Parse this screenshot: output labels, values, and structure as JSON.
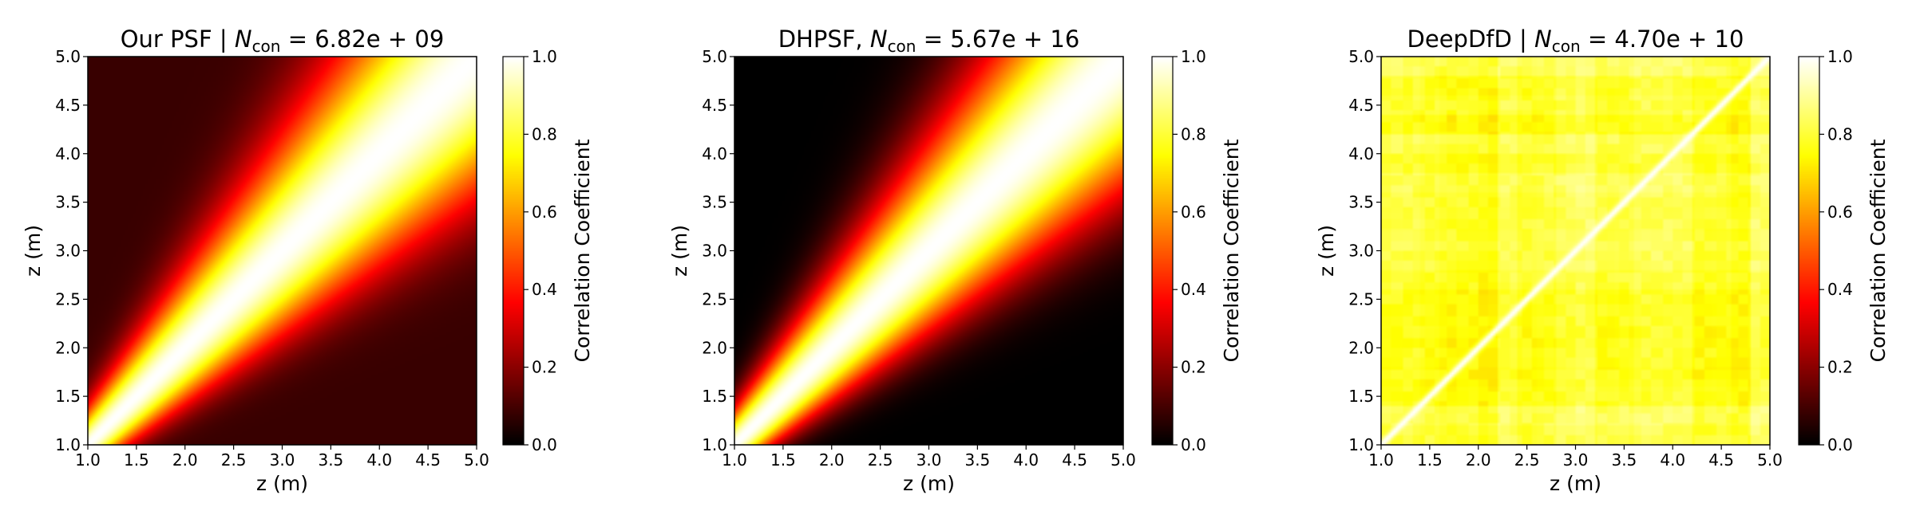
{
  "chart_data": [
    {
      "type": "heatmap",
      "title": "Our PSF | N_con = 6.82e+09",
      "title_parts": {
        "prefix": "Our PSF | ",
        "symbol": "N",
        "subscript": "con",
        "equation": " = 6.82e + 09"
      },
      "xlabel": "z (m)",
      "ylabel": "z (m)",
      "xlim": [
        1.0,
        5.0
      ],
      "ylim": [
        1.0,
        5.0
      ],
      "x_ticks": [
        "1.0",
        "1.5",
        "2.0",
        "2.5",
        "3.0",
        "3.5",
        "4.0",
        "4.5",
        "5.0"
      ],
      "y_ticks": [
        "1.0",
        "1.5",
        "2.0",
        "2.5",
        "3.0",
        "3.5",
        "4.0",
        "4.5",
        "5.0"
      ],
      "colorbar": {
        "label": "Correlation Coefficient",
        "range": [
          0.0,
          1.0
        ],
        "ticks": [
          "0.0",
          "0.2",
          "0.4",
          "0.6",
          "0.8",
          "1.0"
        ],
        "colormap": "hot"
      },
      "correlation_model": {
        "kind": "log_distance_decay",
        "scale": 2.2,
        "floor": 0.08
      },
      "legend": "none",
      "grid": false
    },
    {
      "type": "heatmap",
      "title": "DHPSF, N_con = 5.67e+16",
      "title_parts": {
        "prefix": "DHPSF, ",
        "symbol": "N",
        "subscript": "con",
        "equation": " = 5.67e + 16"
      },
      "xlabel": "z (m)",
      "ylabel": "z (m)",
      "xlim": [
        1.0,
        5.0
      ],
      "ylim": [
        1.0,
        5.0
      ],
      "x_ticks": [
        "1.0",
        "1.5",
        "2.0",
        "2.5",
        "3.0",
        "3.5",
        "4.0",
        "4.5",
        "5.0"
      ],
      "y_ticks": [
        "1.0",
        "1.5",
        "2.0",
        "2.5",
        "3.0",
        "3.5",
        "4.0",
        "4.5",
        "5.0"
      ],
      "colorbar": {
        "label": "Correlation Coefficient",
        "range": [
          0.0,
          1.0
        ],
        "ticks": [
          "0.0",
          "0.2",
          "0.4",
          "0.6",
          "0.8",
          "1.0"
        ],
        "colormap": "hot"
      },
      "correlation_model": {
        "kind": "log_distance_decay",
        "scale": 2.2,
        "floor": 0.0
      },
      "legend": "none",
      "grid": false
    },
    {
      "type": "heatmap",
      "title": "DeepDfD | N_con = 4.70e+10",
      "title_parts": {
        "prefix": "DeepDfD | ",
        "symbol": "N",
        "subscript": "con",
        "equation": " = 4.70e + 10"
      },
      "xlabel": "z (m)",
      "ylabel": "z (m)",
      "xlim": [
        1.0,
        5.0
      ],
      "ylim": [
        1.0,
        5.0
      ],
      "x_ticks": [
        "1.0",
        "1.5",
        "2.0",
        "2.5",
        "3.0",
        "3.5",
        "4.0",
        "4.5",
        "5.0"
      ],
      "y_ticks": [
        "1.0",
        "1.5",
        "2.0",
        "2.5",
        "3.0",
        "3.5",
        "4.0",
        "4.5",
        "5.0"
      ],
      "colorbar": {
        "label": "Correlation Coefficient",
        "range": [
          0.0,
          1.0
        ],
        "ticks": [
          "0.0",
          "0.2",
          "0.4",
          "0.6",
          "0.8",
          "1.0"
        ],
        "colormap": "hot"
      },
      "correlation_model": {
        "kind": "uniform_high_with_texture",
        "diagonal": 1.0,
        "mean": 0.78,
        "min": 0.6
      },
      "legend": "none",
      "grid": false
    }
  ]
}
